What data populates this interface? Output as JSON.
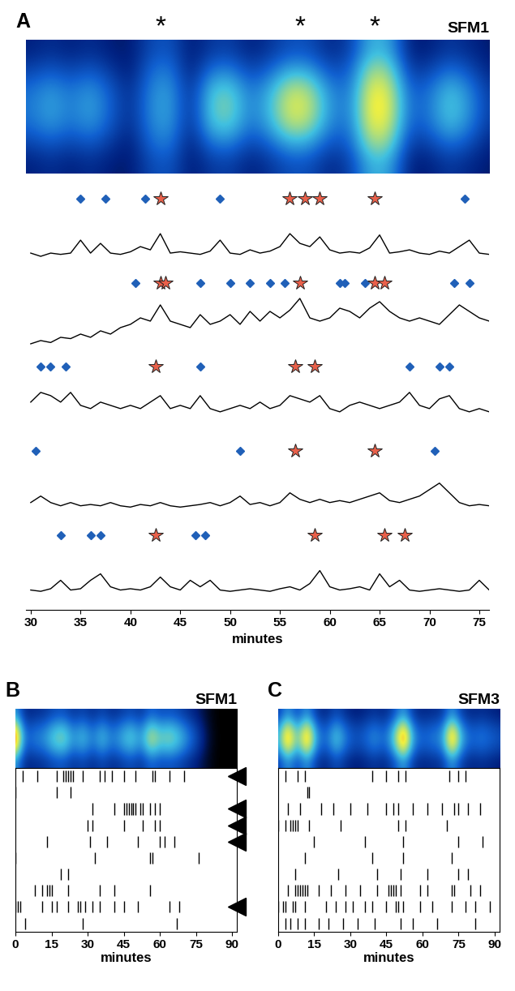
{
  "chart_data": [
    {
      "type": "heatmap",
      "panel": "A",
      "title": "SFM1",
      "x": [
        30,
        32,
        34,
        36,
        38,
        40,
        42,
        44,
        46,
        48,
        50,
        52,
        54,
        56,
        58,
        60,
        62,
        64,
        66,
        68,
        70,
        72,
        74,
        76
      ],
      "xlim": [
        29.5,
        76
      ],
      "clim": [
        0,
        1
      ],
      "tick_labels": false,
      "cells": [
        [
          0.12,
          0.16,
          0.12,
          0.16,
          0.11,
          0.1,
          0.24,
          0.27,
          0.1,
          0.19,
          0.21,
          0.12,
          0.18,
          0.26,
          0.25,
          0.14,
          0.21,
          0.48,
          0.45,
          0.11,
          0.12,
          0.19,
          0.14,
          0.1
        ],
        [
          0.21,
          0.27,
          0.21,
          0.27,
          0.18,
          0.1,
          0.32,
          0.36,
          0.1,
          0.33,
          0.36,
          0.21,
          0.3,
          0.45,
          0.42,
          0.24,
          0.28,
          0.64,
          0.6,
          0.18,
          0.21,
          0.33,
          0.24,
          0.12
        ],
        [
          0.32,
          0.41,
          0.32,
          0.41,
          0.27,
          0.14,
          0.38,
          0.43,
          0.14,
          0.5,
          0.54,
          0.32,
          0.45,
          0.68,
          0.63,
          0.36,
          0.33,
          0.76,
          0.71,
          0.27,
          0.32,
          0.5,
          0.36,
          0.18
        ],
        [
          0.35,
          0.45,
          0.35,
          0.45,
          0.3,
          0.15,
          0.4,
          0.45,
          0.15,
          0.55,
          0.6,
          0.35,
          0.5,
          0.75,
          0.7,
          0.4,
          0.35,
          0.8,
          0.75,
          0.3,
          0.35,
          0.55,
          0.4,
          0.2
        ],
        [
          0.32,
          0.41,
          0.32,
          0.41,
          0.27,
          0.14,
          0.38,
          0.43,
          0.14,
          0.5,
          0.54,
          0.32,
          0.45,
          0.68,
          0.63,
          0.36,
          0.33,
          0.76,
          0.71,
          0.27,
          0.32,
          0.5,
          0.36,
          0.18
        ],
        [
          0.21,
          0.27,
          0.21,
          0.27,
          0.18,
          0.1,
          0.32,
          0.36,
          0.1,
          0.33,
          0.36,
          0.21,
          0.3,
          0.45,
          0.42,
          0.24,
          0.28,
          0.64,
          0.6,
          0.18,
          0.21,
          0.33,
          0.24,
          0.12
        ],
        [
          0.12,
          0.16,
          0.12,
          0.16,
          0.11,
          0.1,
          0.24,
          0.27,
          0.1,
          0.19,
          0.21,
          0.12,
          0.18,
          0.26,
          0.25,
          0.14,
          0.21,
          0.48,
          0.45,
          0.11,
          0.12,
          0.19,
          0.14,
          0.1
        ]
      ],
      "annotations": [
        {
          "text": "*",
          "x": 43
        },
        {
          "text": "*",
          "x": 57
        },
        {
          "text": "*",
          "x": 64.5
        }
      ]
    },
    {
      "type": "line",
      "xlabel": "minutes",
      "tick_labels": "x",
      "color": "#000000",
      "xlim": [
        29.5,
        76
      ],
      "ylim": [
        0,
        1.3
      ],
      "xticks": [
        30,
        35,
        40,
        45,
        50,
        55,
        60,
        65,
        70,
        75
      ],
      "x": [
        30,
        31,
        32,
        33,
        34,
        35,
        36,
        37,
        38,
        39,
        40,
        41,
        42,
        43,
        44,
        45,
        46,
        47,
        48,
        49,
        50,
        51,
        52,
        53,
        54,
        55,
        56,
        57,
        58,
        59,
        60,
        61,
        62,
        63,
        64,
        65,
        66,
        67,
        68,
        69,
        70,
        71,
        72,
        73,
        74,
        75,
        76
      ],
      "series": [
        {
          "values": [
            0.3,
            0.25,
            0.3,
            0.28,
            0.3,
            0.5,
            0.3,
            0.45,
            0.3,
            0.28,
            0.32,
            0.4,
            0.35,
            0.6,
            0.3,
            0.32,
            0.3,
            0.28,
            0.33,
            0.5,
            0.3,
            0.28,
            0.35,
            0.3,
            0.33,
            0.4,
            0.6,
            0.45,
            0.4,
            0.55,
            0.35,
            0.3,
            0.32,
            0.3,
            0.38,
            0.58,
            0.3,
            0.32,
            0.35,
            0.3,
            0.28,
            0.33,
            0.3,
            0.4,
            0.5,
            0.3,
            0.28
          ],
          "events": [
            35,
            37.5,
            41.5,
            49,
            73.5
          ],
          "stars": [
            43,
            56,
            57.5,
            59,
            64.5
          ]
        },
        {
          "values": [
            0.2,
            0.25,
            0.22,
            0.3,
            0.28,
            0.35,
            0.3,
            0.4,
            0.35,
            0.45,
            0.5,
            0.6,
            0.55,
            0.8,
            0.55,
            0.5,
            0.45,
            0.65,
            0.5,
            0.55,
            0.65,
            0.5,
            0.7,
            0.55,
            0.7,
            0.6,
            0.72,
            0.9,
            0.6,
            0.55,
            0.6,
            0.75,
            0.7,
            0.6,
            0.75,
            0.85,
            0.7,
            0.6,
            0.55,
            0.6,
            0.55,
            0.5,
            0.65,
            0.8,
            0.7,
            0.6,
            0.55
          ],
          "events": [
            40.5,
            47,
            50,
            52,
            54,
            55.5,
            61,
            61.5,
            63.5,
            72.5,
            74
          ],
          "stars": [
            43,
            43.5,
            57,
            64.5,
            65.5
          ]
        },
        {
          "values": [
            0.6,
            0.75,
            0.7,
            0.6,
            0.75,
            0.55,
            0.5,
            0.6,
            0.55,
            0.5,
            0.55,
            0.5,
            0.6,
            0.7,
            0.5,
            0.55,
            0.5,
            0.7,
            0.5,
            0.45,
            0.5,
            0.55,
            0.5,
            0.6,
            0.5,
            0.55,
            0.7,
            0.65,
            0.6,
            0.7,
            0.5,
            0.45,
            0.55,
            0.6,
            0.55,
            0.5,
            0.55,
            0.6,
            0.75,
            0.55,
            0.5,
            0.65,
            0.7,
            0.5,
            0.45,
            0.5,
            0.45
          ],
          "events": [
            31,
            32,
            33.5,
            47,
            68,
            71,
            72
          ],
          "stars": [
            42.5,
            56.5,
            58.5
          ]
        },
        {
          "values": [
            0.35,
            0.45,
            0.35,
            0.3,
            0.35,
            0.3,
            0.32,
            0.3,
            0.35,
            0.3,
            0.28,
            0.32,
            0.3,
            0.35,
            0.3,
            0.28,
            0.3,
            0.32,
            0.35,
            0.3,
            0.35,
            0.45,
            0.32,
            0.35,
            0.3,
            0.35,
            0.5,
            0.4,
            0.35,
            0.4,
            0.35,
            0.38,
            0.35,
            0.4,
            0.45,
            0.5,
            0.38,
            0.35,
            0.4,
            0.45,
            0.55,
            0.65,
            0.5,
            0.35,
            0.3,
            0.32,
            0.3
          ],
          "events": [
            30.5,
            51,
            70.5
          ],
          "stars": [
            56.5,
            64.5
          ]
        },
        {
          "values": [
            0.3,
            0.28,
            0.32,
            0.45,
            0.3,
            0.32,
            0.45,
            0.55,
            0.35,
            0.3,
            0.32,
            0.3,
            0.35,
            0.5,
            0.35,
            0.3,
            0.45,
            0.35,
            0.45,
            0.3,
            0.28,
            0.3,
            0.32,
            0.3,
            0.28,
            0.32,
            0.35,
            0.3,
            0.4,
            0.6,
            0.35,
            0.3,
            0.32,
            0.35,
            0.3,
            0.55,
            0.35,
            0.45,
            0.3,
            0.28,
            0.3,
            0.32,
            0.3,
            0.28,
            0.3,
            0.45,
            0.3
          ],
          "events": [
            33,
            36,
            37,
            46.5,
            47.5
          ],
          "stars": [
            42.5,
            58.5,
            65.5,
            67.5
          ]
        }
      ]
    },
    {
      "type": "heatmap",
      "panel": "B",
      "title": "SFM1",
      "x": [
        0,
        4,
        8,
        12,
        16,
        20,
        24,
        28,
        32,
        36,
        40,
        44,
        48,
        52,
        56,
        60,
        64,
        68,
        72,
        76,
        80,
        84,
        88,
        92
      ],
      "xlim": [
        0,
        92
      ],
      "clim": [
        0,
        1
      ],
      "tick_labels": false,
      "cells": [
        [
          0.45,
          0.14,
          0.16,
          0.18,
          0.25,
          0.27,
          0.18,
          0.23,
          0.16,
          0.23,
          0.16,
          0.2,
          0.25,
          0.18,
          0.32,
          0.25,
          0.27,
          0.23,
          0.16,
          0.1,
          0.03,
          0,
          0,
          0
        ],
        [
          0.8,
          0.24,
          0.28,
          0.32,
          0.44,
          0.48,
          0.32,
          0.4,
          0.28,
          0.4,
          0.28,
          0.36,
          0.44,
          0.32,
          0.56,
          0.44,
          0.48,
          0.4,
          0.28,
          0.16,
          0.04,
          0,
          0,
          0
        ],
        [
          1.0,
          0.3,
          0.35,
          0.4,
          0.55,
          0.6,
          0.4,
          0.5,
          0.35,
          0.5,
          0.35,
          0.45,
          0.55,
          0.4,
          0.7,
          0.55,
          0.6,
          0.5,
          0.35,
          0.2,
          0.05,
          0,
          0,
          0
        ],
        [
          0.8,
          0.24,
          0.28,
          0.32,
          0.44,
          0.48,
          0.32,
          0.4,
          0.28,
          0.4,
          0.28,
          0.36,
          0.44,
          0.32,
          0.56,
          0.44,
          0.48,
          0.4,
          0.28,
          0.16,
          0.04,
          0,
          0,
          0
        ],
        [
          0.45,
          0.14,
          0.16,
          0.18,
          0.25,
          0.27,
          0.18,
          0.23,
          0.16,
          0.23,
          0.16,
          0.2,
          0.25,
          0.18,
          0.32,
          0.25,
          0.27,
          0.23,
          0.16,
          0.1,
          0.03,
          0,
          0,
          0
        ]
      ]
    },
    {
      "type": "raster",
      "xlabel": "minutes",
      "tick_labels": "x",
      "xlim": [
        0,
        92
      ],
      "xticks": [
        0,
        15,
        30,
        45,
        60,
        75,
        90
      ],
      "rows": [
        [
          3,
          9,
          17,
          20,
          21,
          22,
          23,
          24,
          28,
          35,
          37,
          40,
          45,
          50,
          57,
          58,
          64,
          70
        ],
        [
          0,
          17,
          23
        ],
        [
          32,
          41,
          45,
          46,
          47,
          48,
          49,
          50,
          52,
          53,
          56,
          58,
          60
        ],
        [
          30,
          32,
          45,
          53,
          58,
          60
        ],
        [
          13,
          31,
          38,
          51,
          60,
          62,
          66
        ],
        [
          0,
          33,
          56,
          57,
          76
        ],
        [
          19,
          22
        ],
        [
          8,
          11,
          13,
          14,
          15,
          22,
          35,
          41,
          56
        ],
        [
          0,
          1,
          2,
          11,
          15,
          17,
          22,
          26,
          27,
          29,
          32,
          35,
          41,
          45,
          51,
          64,
          68
        ],
        [
          4,
          28,
          67
        ]
      ],
      "marked_rows": [
        0,
        2,
        3,
        4,
        8
      ]
    },
    {
      "type": "heatmap",
      "panel": "C",
      "title": "SFM3",
      "x": [
        0,
        4,
        8,
        12,
        16,
        20,
        24,
        28,
        32,
        36,
        40,
        44,
        48,
        52,
        56,
        60,
        64,
        68,
        72,
        76,
        80,
        84,
        88,
        92
      ],
      "xlim": [
        0,
        92
      ],
      "clim": [
        0,
        1
      ],
      "tick_labels": false,
      "cells": [
        [
          0.2,
          0.43,
          0.23,
          0.43,
          0.18,
          0.14,
          0.25,
          0.16,
          0.11,
          0.14,
          0.18,
          0.14,
          0.25,
          0.45,
          0.18,
          0.14,
          0.16,
          0.18,
          0.43,
          0.2,
          0.14,
          0.16,
          0.14,
          0.11
        ],
        [
          0.36,
          0.76,
          0.4,
          0.76,
          0.32,
          0.24,
          0.44,
          0.28,
          0.2,
          0.24,
          0.32,
          0.24,
          0.44,
          0.8,
          0.32,
          0.24,
          0.28,
          0.32,
          0.76,
          0.36,
          0.24,
          0.28,
          0.24,
          0.2
        ],
        [
          0.45,
          0.95,
          0.5,
          0.95,
          0.4,
          0.3,
          0.55,
          0.35,
          0.25,
          0.3,
          0.4,
          0.3,
          0.55,
          1.0,
          0.4,
          0.3,
          0.35,
          0.4,
          0.95,
          0.45,
          0.3,
          0.35,
          0.3,
          0.25
        ],
        [
          0.36,
          0.76,
          0.4,
          0.76,
          0.32,
          0.24,
          0.44,
          0.28,
          0.2,
          0.24,
          0.32,
          0.24,
          0.44,
          0.8,
          0.32,
          0.24,
          0.28,
          0.32,
          0.76,
          0.36,
          0.24,
          0.28,
          0.24,
          0.2
        ],
        [
          0.2,
          0.43,
          0.23,
          0.43,
          0.18,
          0.14,
          0.25,
          0.16,
          0.11,
          0.14,
          0.18,
          0.14,
          0.25,
          0.45,
          0.18,
          0.14,
          0.16,
          0.18,
          0.43,
          0.2,
          0.14,
          0.16,
          0.14,
          0.11
        ]
      ]
    },
    {
      "type": "raster",
      "xlabel": "minutes",
      "tick_labels": "x",
      "xlim": [
        0,
        92
      ],
      "xticks": [
        0,
        15,
        30,
        45,
        60,
        75,
        90
      ],
      "rows": [
        [
          3,
          8,
          11,
          39,
          45,
          50,
          53,
          71,
          75,
          78
        ],
        [
          12,
          13
        ],
        [
          4,
          9,
          18,
          23,
          30,
          37,
          45,
          48,
          50,
          56,
          62,
          68,
          73,
          75,
          79,
          84
        ],
        [
          0,
          3,
          5,
          6,
          7,
          8,
          13,
          26,
          50,
          53,
          70
        ],
        [
          15,
          36,
          52,
          75,
          85
        ],
        [
          11,
          39,
          52,
          72
        ],
        [
          7,
          25,
          41,
          51,
          62,
          75,
          79
        ],
        [
          4,
          7,
          8,
          9,
          10,
          11,
          12,
          17,
          22,
          28,
          34,
          41,
          46,
          47,
          48,
          49,
          51,
          59,
          62,
          72,
          73,
          80,
          84
        ],
        [
          0,
          2,
          3,
          6,
          7,
          11,
          20,
          24,
          28,
          31,
          36,
          39,
          45,
          49,
          50,
          52,
          59,
          64,
          72,
          78,
          82,
          88
        ],
        [
          3,
          5,
          8,
          11,
          17,
          21,
          27,
          33,
          40,
          51,
          56,
          66,
          82
        ]
      ],
      "marked_rows": []
    }
  ]
}
